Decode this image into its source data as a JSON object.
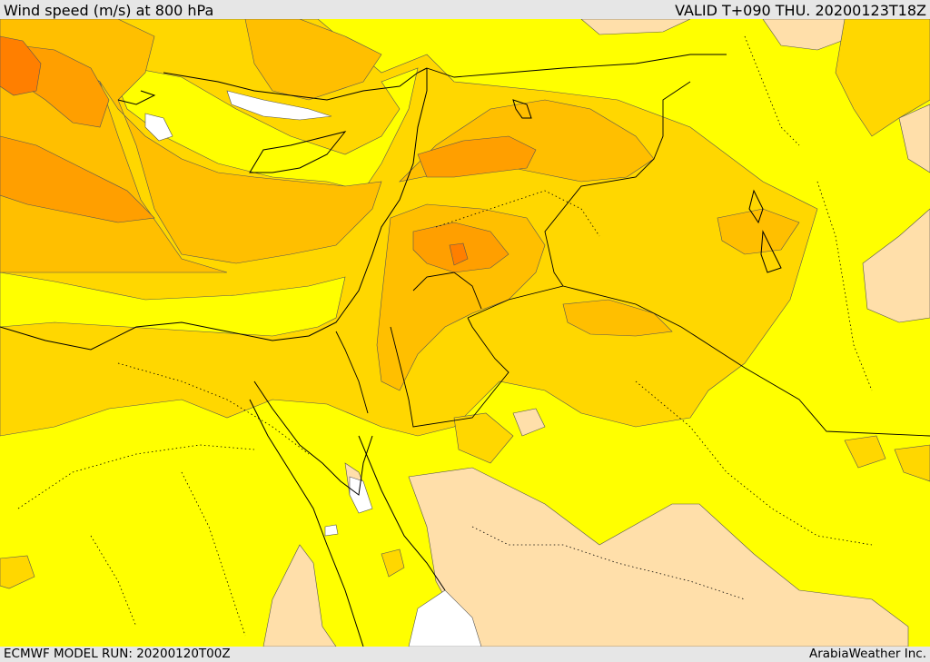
{
  "header": {
    "title": "Wind speed (m/s) at 800 hPa",
    "valid": "VALID T+090 THU. 20200123T18Z"
  },
  "footer": {
    "model_run": "ECMWF MODEL RUN: 20200120T00Z",
    "provider": "ArabiaWeather Inc."
  },
  "colors": {
    "very_low": "#ffffff",
    "low": "#ffdfaa",
    "base": "#ffff00",
    "moderate": "#ffd700",
    "elevated": "#ffbf00",
    "high": "#ff9f00",
    "very_high": "#ff7f00",
    "border": "#000000"
  }
}
